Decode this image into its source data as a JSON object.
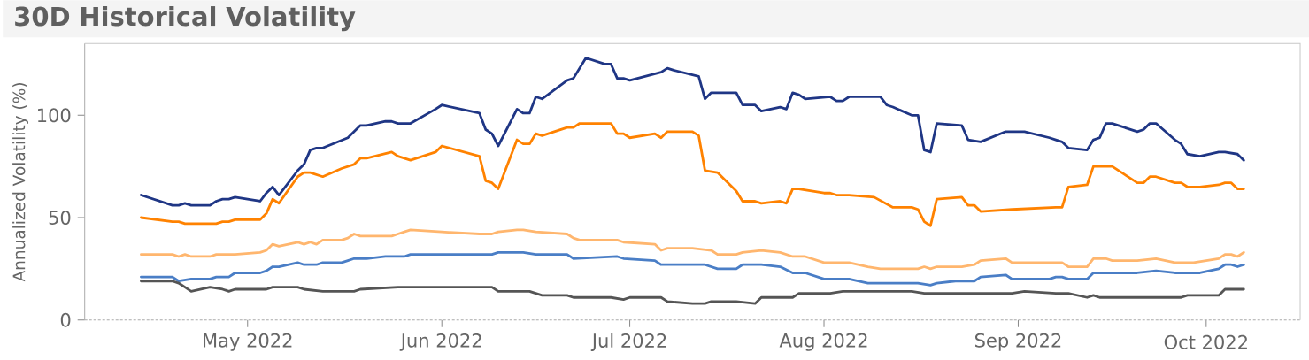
{
  "chart_data": {
    "type": "line",
    "title": "30D Historical Volatility",
    "ylabel": "Annualized Volatility (%)",
    "xlim": [
      "2022-04-05",
      "2022-10-16"
    ],
    "xticks": [
      {
        "value": "2022-05-01",
        "label": "May 2022"
      },
      {
        "value": "2022-06-01",
        "label": "Jun 2022"
      },
      {
        "value": "2022-07-01",
        "label": "Jul 2022"
      },
      {
        "value": "2022-08-01",
        "label": "Aug 2022"
      },
      {
        "value": "2022-09-01",
        "label": "Sep 2022"
      },
      {
        "value": "2022-10-01",
        "label": "Oct 2022"
      }
    ],
    "ylim": [
      0,
      135
    ],
    "yticks": [
      0,
      50,
      100
    ],
    "line_style": "solid",
    "series": [
      {
        "color": "#1f3685",
        "x": [
          "2022-04-14",
          "2022-04-19",
          "2022-04-20",
          "2022-04-21",
          "2022-04-22",
          "2022-04-25",
          "2022-04-26",
          "2022-04-27",
          "2022-04-28",
          "2022-04-29",
          "2022-05-03",
          "2022-05-04",
          "2022-05-05",
          "2022-05-06",
          "2022-05-09",
          "2022-05-10",
          "2022-05-11",
          "2022-05-12",
          "2022-05-13",
          "2022-05-17",
          "2022-05-19",
          "2022-05-20",
          "2022-05-23",
          "2022-05-24",
          "2022-05-25",
          "2022-05-26",
          "2022-05-27",
          "2022-05-31",
          "2022-06-01",
          "2022-06-07",
          "2022-06-08",
          "2022-06-09",
          "2022-06-10",
          "2022-06-13",
          "2022-06-14",
          "2022-06-15",
          "2022-06-16",
          "2022-06-17",
          "2022-06-21",
          "2022-06-22",
          "2022-06-24",
          "2022-06-27",
          "2022-06-28",
          "2022-06-29",
          "2022-06-30",
          "2022-07-01",
          "2022-07-06",
          "2022-07-07",
          "2022-07-08",
          "2022-07-12",
          "2022-07-13",
          "2022-07-14",
          "2022-07-18",
          "2022-07-19",
          "2022-07-21",
          "2022-07-22",
          "2022-07-25",
          "2022-07-26",
          "2022-07-27",
          "2022-07-28",
          "2022-07-29",
          "2022-08-02",
          "2022-08-03",
          "2022-08-04",
          "2022-08-05",
          "2022-08-09",
          "2022-08-10",
          "2022-08-11",
          "2022-08-12",
          "2022-08-15",
          "2022-08-16",
          "2022-08-17",
          "2022-08-18",
          "2022-08-19",
          "2022-08-23",
          "2022-08-24",
          "2022-08-26",
          "2022-08-30",
          "2022-09-02",
          "2022-09-06",
          "2022-09-07",
          "2022-09-08",
          "2022-09-09",
          "2022-09-12",
          "2022-09-13",
          "2022-09-14",
          "2022-09-15",
          "2022-09-16",
          "2022-09-20",
          "2022-09-21",
          "2022-09-22",
          "2022-09-23",
          "2022-09-26",
          "2022-09-27",
          "2022-09-28",
          "2022-09-30",
          "2022-10-03",
          "2022-10-04",
          "2022-10-06",
          "2022-10-07"
        ],
        "values": [
          61,
          56,
          56,
          57,
          56,
          56,
          58,
          59,
          59,
          60,
          58,
          62,
          65,
          61,
          73,
          76,
          83,
          84,
          84,
          89,
          95,
          95,
          97,
          97,
          96,
          96,
          96,
          103,
          105,
          101,
          93,
          91,
          85,
          103,
          101,
          101,
          109,
          108,
          117,
          118,
          128,
          125,
          125,
          118,
          118,
          117,
          121,
          123,
          122,
          119,
          108,
          111,
          111,
          105,
          105,
          102,
          104,
          103,
          111,
          110,
          108,
          109,
          107,
          107,
          109,
          109,
          109,
          105,
          104,
          100,
          100,
          83,
          82,
          96,
          95,
          88,
          87,
          92,
          92,
          89,
          88,
          87,
          84,
          83,
          88,
          89,
          96,
          96,
          92,
          93,
          96,
          96,
          88,
          86,
          81,
          80,
          82,
          82,
          81,
          78
        ]
      },
      {
        "color": "#ff8200",
        "x": [
          "2022-04-14",
          "2022-04-19",
          "2022-04-20",
          "2022-04-21",
          "2022-04-25",
          "2022-04-26",
          "2022-04-27",
          "2022-04-28",
          "2022-04-29",
          "2022-05-03",
          "2022-05-04",
          "2022-05-05",
          "2022-05-06",
          "2022-05-09",
          "2022-05-10",
          "2022-05-11",
          "2022-05-13",
          "2022-05-16",
          "2022-05-18",
          "2022-05-19",
          "2022-05-20",
          "2022-05-24",
          "2022-05-25",
          "2022-05-27",
          "2022-05-31",
          "2022-06-01",
          "2022-06-07",
          "2022-06-08",
          "2022-06-09",
          "2022-06-10",
          "2022-06-13",
          "2022-06-14",
          "2022-06-15",
          "2022-06-16",
          "2022-06-17",
          "2022-06-21",
          "2022-06-22",
          "2022-06-23",
          "2022-06-28",
          "2022-06-29",
          "2022-06-30",
          "2022-07-01",
          "2022-07-05",
          "2022-07-06",
          "2022-07-07",
          "2022-07-11",
          "2022-07-12",
          "2022-07-13",
          "2022-07-15",
          "2022-07-18",
          "2022-07-19",
          "2022-07-21",
          "2022-07-22",
          "2022-07-25",
          "2022-07-26",
          "2022-07-27",
          "2022-07-28",
          "2022-08-01",
          "2022-08-02",
          "2022-08-03",
          "2022-08-05",
          "2022-08-09",
          "2022-08-12",
          "2022-08-15",
          "2022-08-16",
          "2022-08-17",
          "2022-08-18",
          "2022-08-19",
          "2022-08-23",
          "2022-08-24",
          "2022-08-25",
          "2022-08-26",
          "2022-08-31",
          "2022-09-07",
          "2022-09-08",
          "2022-09-09",
          "2022-09-12",
          "2022-09-13",
          "2022-09-15",
          "2022-09-16",
          "2022-09-20",
          "2022-09-21",
          "2022-09-22",
          "2022-09-23",
          "2022-09-26",
          "2022-09-27",
          "2022-09-28",
          "2022-09-30",
          "2022-10-03",
          "2022-10-04",
          "2022-10-05",
          "2022-10-06",
          "2022-10-07"
        ],
        "values": [
          50,
          48,
          48,
          47,
          47,
          47,
          48,
          48,
          49,
          49,
          52,
          59,
          57,
          70,
          72,
          72,
          70,
          74,
          76,
          79,
          79,
          82,
          80,
          78,
          82,
          85,
          80,
          68,
          67,
          64,
          88,
          86,
          86,
          91,
          90,
          94,
          94,
          96,
          96,
          91,
          91,
          89,
          91,
          89,
          92,
          92,
          90,
          73,
          72,
          63,
          58,
          58,
          57,
          58,
          57,
          64,
          64,
          62,
          62,
          61,
          61,
          60,
          55,
          55,
          54,
          48,
          46,
          59,
          60,
          56,
          56,
          53,
          54,
          55,
          55,
          65,
          66,
          75,
          75,
          75,
          67,
          67,
          70,
          70,
          67,
          67,
          65,
          65,
          66,
          67,
          67,
          64,
          64
        ]
      },
      {
        "color": "#ffb66e",
        "x": [
          "2022-04-14",
          "2022-04-19",
          "2022-04-20",
          "2022-04-21",
          "2022-04-22",
          "2022-04-25",
          "2022-04-26",
          "2022-04-27",
          "2022-04-28",
          "2022-04-29",
          "2022-05-03",
          "2022-05-04",
          "2022-05-05",
          "2022-05-06",
          "2022-05-09",
          "2022-05-10",
          "2022-05-11",
          "2022-05-12",
          "2022-05-13",
          "2022-05-16",
          "2022-05-17",
          "2022-05-18",
          "2022-05-19",
          "2022-05-20",
          "2022-05-24",
          "2022-05-25",
          "2022-05-26",
          "2022-05-27",
          "2022-06-01",
          "2022-06-07",
          "2022-06-09",
          "2022-06-10",
          "2022-06-13",
          "2022-06-14",
          "2022-06-16",
          "2022-06-21",
          "2022-06-22",
          "2022-06-23",
          "2022-06-29",
          "2022-06-30",
          "2022-07-05",
          "2022-07-06",
          "2022-07-07",
          "2022-07-11",
          "2022-07-14",
          "2022-07-15",
          "2022-07-18",
          "2022-07-19",
          "2022-07-22",
          "2022-07-25",
          "2022-07-27",
          "2022-07-29",
          "2022-08-01",
          "2022-08-05",
          "2022-08-08",
          "2022-08-10",
          "2022-08-16",
          "2022-08-17",
          "2022-08-18",
          "2022-08-19",
          "2022-08-23",
          "2022-08-25",
          "2022-08-26",
          "2022-08-30",
          "2022-08-31",
          "2022-09-02",
          "2022-09-06",
          "2022-09-07",
          "2022-09-08",
          "2022-09-09",
          "2022-09-12",
          "2022-09-13",
          "2022-09-15",
          "2022-09-16",
          "2022-09-20",
          "2022-09-23",
          "2022-09-26",
          "2022-09-29",
          "2022-10-01",
          "2022-10-03",
          "2022-10-04",
          "2022-10-05",
          "2022-10-06",
          "2022-10-07"
        ],
        "values": [
          32,
          32,
          31,
          32,
          31,
          31,
          32,
          32,
          32,
          32,
          33,
          34,
          37,
          36,
          38,
          37,
          38,
          37,
          39,
          39,
          40,
          42,
          41,
          41,
          41,
          42,
          43,
          44,
          43,
          42,
          42,
          43,
          44,
          44,
          43,
          42,
          40,
          39,
          39,
          38,
          37,
          34,
          35,
          35,
          34,
          32,
          32,
          33,
          34,
          33,
          31,
          31,
          28,
          28,
          26,
          25,
          25,
          26,
          25,
          26,
          26,
          27,
          29,
          30,
          28,
          28,
          28,
          28,
          28,
          26,
          26,
          30,
          30,
          29,
          29,
          30,
          28,
          28,
          29,
          30,
          32,
          32,
          31,
          33
        ]
      },
      {
        "color": "#4a7ec6",
        "x": [
          "2022-04-14",
          "2022-04-19",
          "2022-04-20",
          "2022-04-22",
          "2022-04-25",
          "2022-04-26",
          "2022-04-28",
          "2022-04-29",
          "2022-05-03",
          "2022-05-04",
          "2022-05-05",
          "2022-05-06",
          "2022-05-09",
          "2022-05-10",
          "2022-05-12",
          "2022-05-13",
          "2022-05-16",
          "2022-05-17",
          "2022-05-18",
          "2022-05-20",
          "2022-05-23",
          "2022-05-24",
          "2022-05-26",
          "2022-05-27",
          "2022-06-01",
          "2022-06-07",
          "2022-06-09",
          "2022-06-10",
          "2022-06-13",
          "2022-06-14",
          "2022-06-16",
          "2022-06-21",
          "2022-06-22",
          "2022-06-29",
          "2022-06-30",
          "2022-07-05",
          "2022-07-06",
          "2022-07-07",
          "2022-07-13",
          "2022-07-15",
          "2022-07-18",
          "2022-07-19",
          "2022-07-22",
          "2022-07-25",
          "2022-07-27",
          "2022-07-29",
          "2022-08-01",
          "2022-08-05",
          "2022-08-08",
          "2022-08-10",
          "2022-08-16",
          "2022-08-18",
          "2022-08-19",
          "2022-08-22",
          "2022-08-25",
          "2022-08-26",
          "2022-08-30",
          "2022-08-31",
          "2022-09-06",
          "2022-09-07",
          "2022-09-08",
          "2022-09-09",
          "2022-09-12",
          "2022-09-13",
          "2022-09-15",
          "2022-09-16",
          "2022-09-20",
          "2022-09-23",
          "2022-09-26",
          "2022-09-27",
          "2022-09-30",
          "2022-10-03",
          "2022-10-04",
          "2022-10-05",
          "2022-10-06",
          "2022-10-07"
        ],
        "values": [
          21,
          21,
          19,
          20,
          20,
          21,
          21,
          23,
          23,
          24,
          26,
          26,
          28,
          27,
          27,
          28,
          28,
          29,
          30,
          30,
          31,
          31,
          31,
          32,
          32,
          32,
          32,
          33,
          33,
          33,
          32,
          32,
          30,
          31,
          30,
          29,
          27,
          27,
          27,
          25,
          25,
          27,
          27,
          26,
          23,
          23,
          20,
          20,
          18,
          18,
          18,
          17,
          18,
          19,
          19,
          21,
          22,
          20,
          20,
          21,
          21,
          20,
          20,
          23,
          23,
          23,
          23,
          24,
          23,
          23,
          23,
          25,
          27,
          27,
          26,
          27
        ]
      },
      {
        "color": "#555555",
        "x": [
          "2022-04-14",
          "2022-04-19",
          "2022-04-20",
          "2022-04-21",
          "2022-04-22",
          "2022-04-25",
          "2022-04-27",
          "2022-04-28",
          "2022-04-29",
          "2022-05-04",
          "2022-05-05",
          "2022-05-09",
          "2022-05-10",
          "2022-05-13",
          "2022-05-16",
          "2022-05-18",
          "2022-05-19",
          "2022-05-25",
          "2022-06-01",
          "2022-06-09",
          "2022-06-10",
          "2022-06-15",
          "2022-06-17",
          "2022-06-21",
          "2022-06-22",
          "2022-06-28",
          "2022-06-30",
          "2022-07-01",
          "2022-07-06",
          "2022-07-07",
          "2022-07-11",
          "2022-07-13",
          "2022-07-14",
          "2022-07-18",
          "2022-07-21",
          "2022-07-22",
          "2022-07-27",
          "2022-07-28",
          "2022-08-02",
          "2022-08-04",
          "2022-08-09",
          "2022-08-15",
          "2022-08-17",
          "2022-08-24",
          "2022-08-25",
          "2022-08-31",
          "2022-09-02",
          "2022-09-07",
          "2022-09-09",
          "2022-09-12",
          "2022-09-13",
          "2022-09-14",
          "2022-09-16",
          "2022-09-20",
          "2022-09-22",
          "2022-09-23",
          "2022-09-27",
          "2022-09-28",
          "2022-09-30",
          "2022-10-03",
          "2022-10-04",
          "2022-10-07"
        ],
        "values": [
          19,
          19,
          18,
          16,
          14,
          16,
          15,
          14,
          15,
          15,
          16,
          16,
          15,
          14,
          14,
          14,
          15,
          16,
          16,
          16,
          14,
          14,
          12,
          12,
          11,
          11,
          10,
          11,
          11,
          9,
          8,
          8,
          9,
          9,
          8,
          11,
          11,
          13,
          13,
          14,
          14,
          14,
          13,
          13,
          13,
          13,
          14,
          13,
          13,
          11,
          12,
          11,
          11,
          11,
          11,
          11,
          11,
          12,
          12,
          12,
          15,
          15
        ]
      }
    ]
  }
}
